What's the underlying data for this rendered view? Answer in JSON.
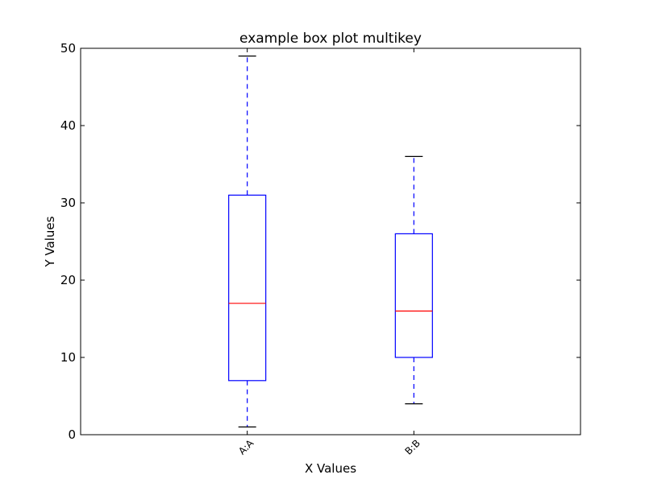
{
  "chart_data": {
    "type": "box",
    "title": "example box plot multikey",
    "xlabel": "X Values",
    "ylabel": "Y Values",
    "ylim": [
      0,
      50
    ],
    "yticks": [
      0,
      10,
      20,
      30,
      40,
      50
    ],
    "grid": false,
    "categories": [
      "A:A",
      "B:B"
    ],
    "boxes": [
      {
        "category": "A:A",
        "whisker_low": 1,
        "q1": 7,
        "median": 17,
        "q3": 31,
        "whisker_high": 49
      },
      {
        "category": "B:B",
        "whisker_low": 4,
        "q1": 10,
        "median": 16,
        "q3": 26,
        "whisker_high": 36
      }
    ],
    "colors": {
      "box": "#0000ff",
      "median": "#ff0000",
      "cap": "#000000"
    }
  }
}
